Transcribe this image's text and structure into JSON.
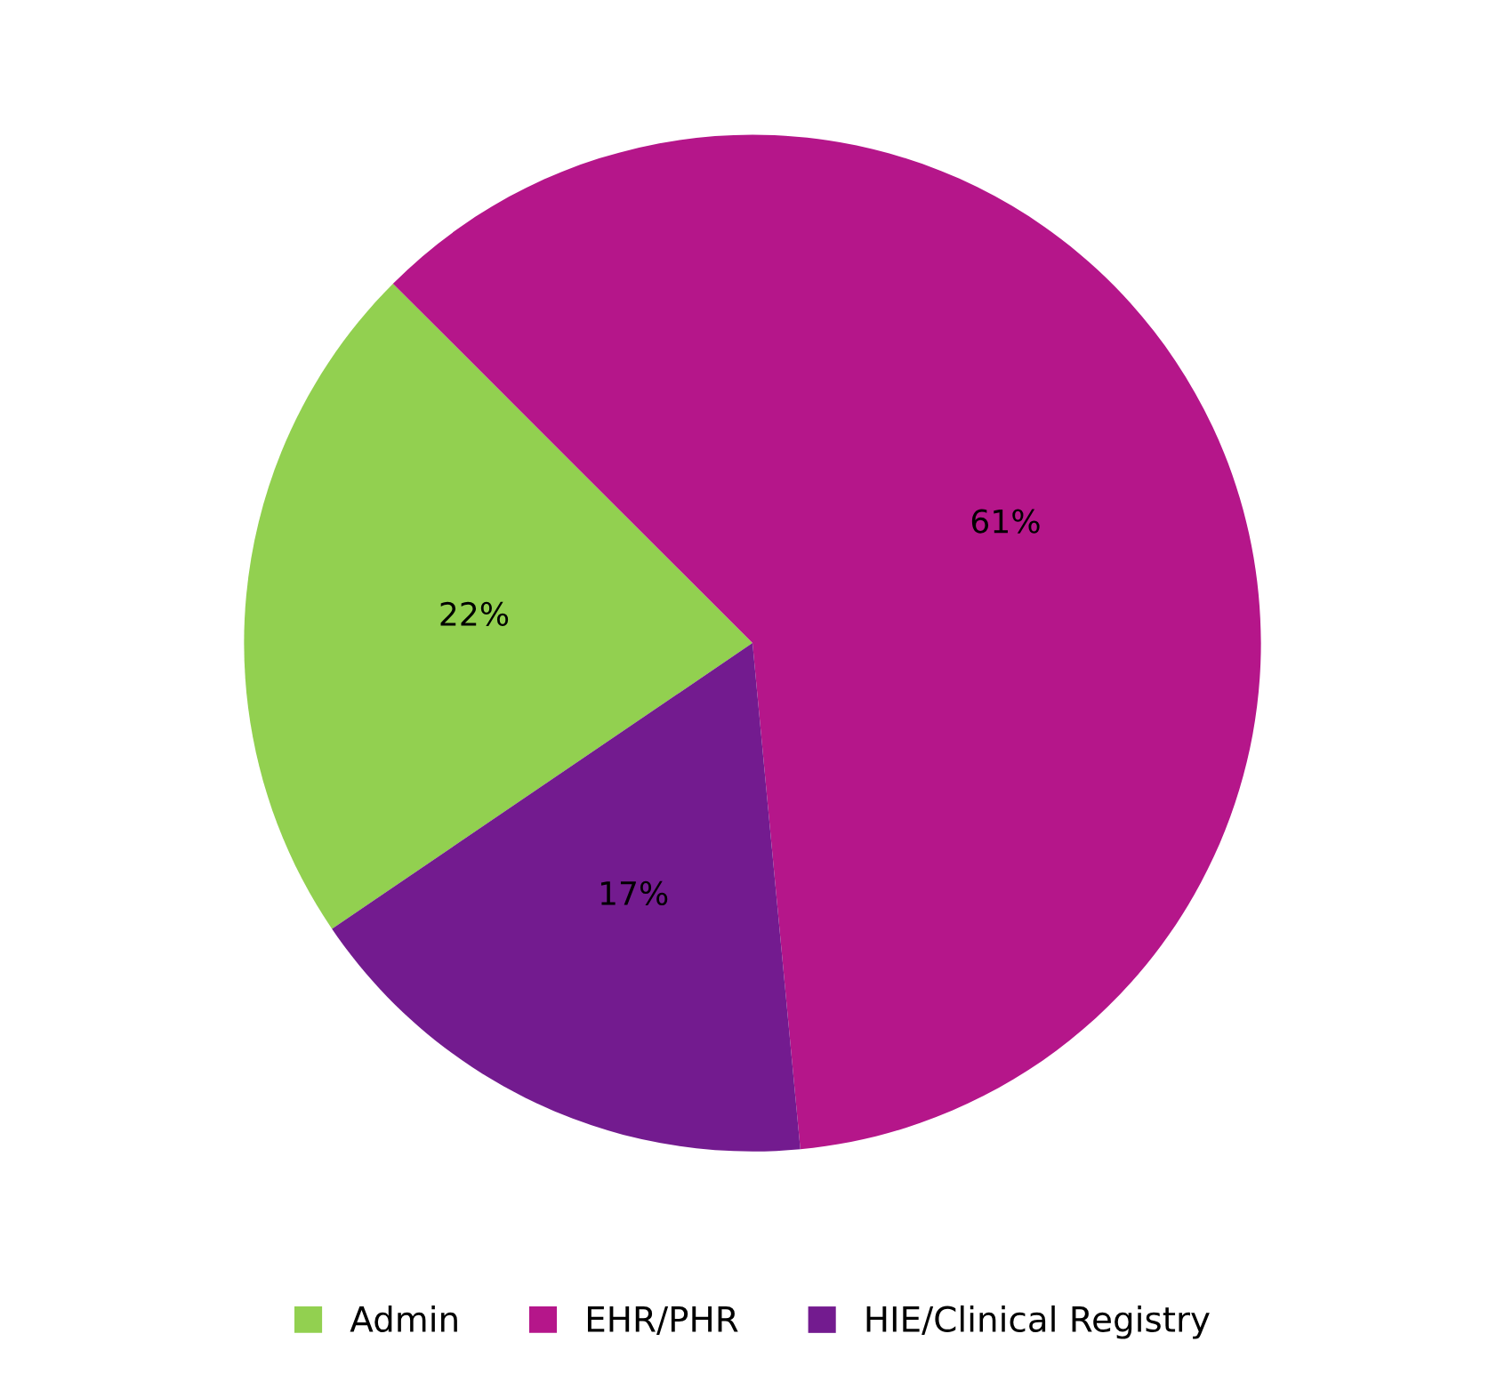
{
  "chart_data": {
    "type": "pie",
    "categories": [
      "Admin",
      "EHR/PHR",
      "HIE/Clinical Registry"
    ],
    "values": [
      22,
      61,
      17
    ],
    "colors": [
      "#92d050",
      "#b5168a",
      "#731b8f"
    ],
    "value_labels": [
      "22%",
      "61%",
      "17%"
    ],
    "legend": "bottom"
  }
}
